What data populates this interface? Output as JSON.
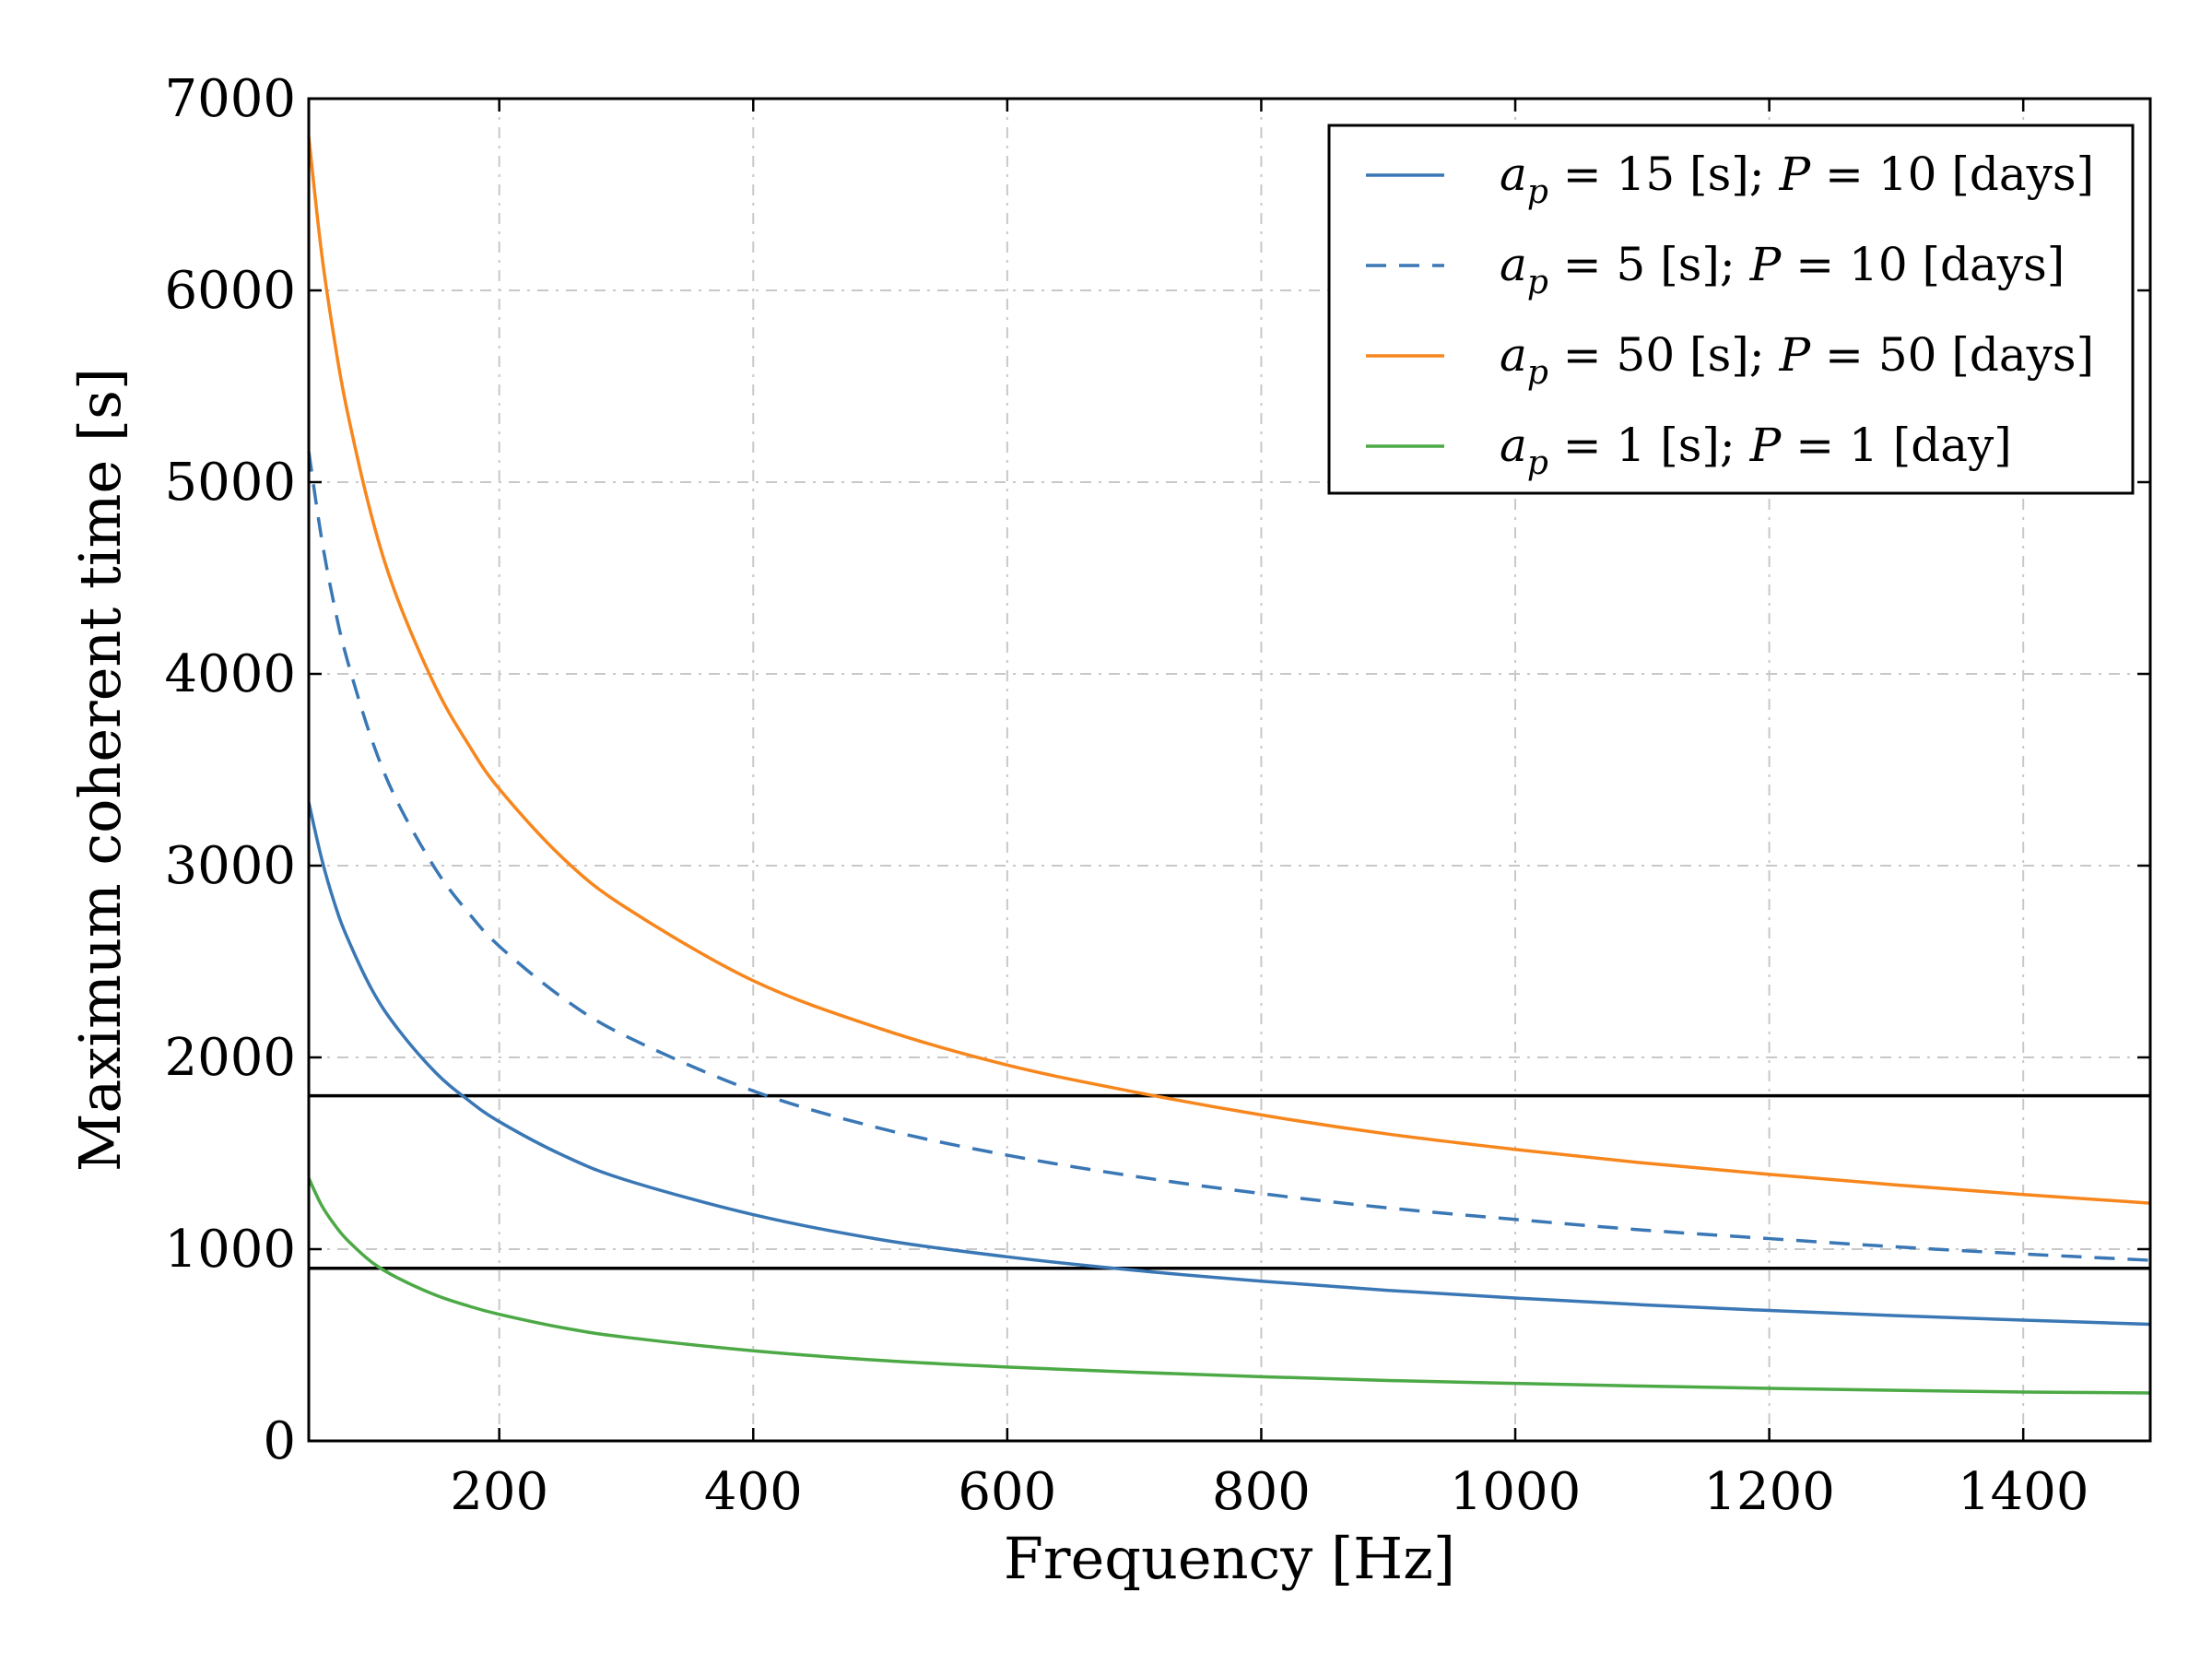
{
  "chart_data": {
    "type": "line",
    "title": "",
    "xlabel": "Frequency [Hz]",
    "ylabel": "Maximum coherent time [s]",
    "xlim": [
      50,
      1500
    ],
    "ylim": [
      0,
      7000
    ],
    "xticks": [
      200,
      400,
      600,
      800,
      1000,
      1200,
      1400
    ],
    "xtick_labels": [
      "200",
      "400",
      "600",
      "800",
      "1000",
      "1200",
      "1400"
    ],
    "yticks": [
      0,
      1000,
      2000,
      3000,
      4000,
      5000,
      6000,
      7000
    ],
    "ytick_labels": [
      "0",
      "1000",
      "2000",
      "3000",
      "4000",
      "5000",
      "6000",
      "7000"
    ],
    "grid": true,
    "legend_position": "top-right",
    "x": [
      50,
      60,
      70,
      80,
      100,
      120,
      150,
      175,
      200,
      250,
      300,
      400,
      500,
      600,
      700,
      800,
      900,
      1000,
      1100,
      1200,
      1300,
      1400,
      1500
    ],
    "series": [
      {
        "name": "a_p = 15 [s]; P = 10 [days]",
        "legend_parts": [
          "a",
          "p",
          " = 15 [s]; ",
          "P",
          " = 10 [days]"
        ],
        "color": "#3a77b5",
        "style": "solid",
        "values": [
          3330,
          3040,
          2810,
          2630,
          2350,
          2150,
          1920,
          1780,
          1665,
          1490,
          1360,
          1180,
          1050,
          960,
          890,
          833,
          785,
          745,
          710,
          680,
          653,
          630,
          608
        ]
      },
      {
        "name": "a_p = 5 [s]; P = 10 [days]",
        "legend_parts": [
          "a",
          "p",
          " = 5 [s]; ",
          "P",
          " = 10 [days]"
        ],
        "color": "#3a77b5",
        "style": "dashed",
        "values": [
          5160,
          4710,
          4360,
          4080,
          3650,
          3330,
          2980,
          2760,
          2580,
          2310,
          2110,
          1825,
          1630,
          1490,
          1380,
          1290,
          1215,
          1155,
          1100,
          1055,
          1012,
          975,
          942
        ]
      },
      {
        "name": "a_p = 50 [s]; P = 50 [days]",
        "legend_parts": [
          "a",
          "p",
          " = 50 [s]; ",
          "P",
          " = 50 [days]"
        ],
        "color": "#f7861d",
        "style": "solid",
        "values": [
          6800,
          6200,
          5750,
          5380,
          4810,
          4390,
          3930,
          3640,
          3400,
          3040,
          2780,
          2400,
          2150,
          1960,
          1820,
          1700,
          1600,
          1520,
          1450,
          1390,
          1335,
          1285,
          1240
        ]
      },
      {
        "name": "a_p = 1 [s]; P = 1 [day]",
        "legend_parts": [
          "a",
          "p",
          " = 1 [s]; ",
          "P",
          " = 1 [day]"
        ],
        "color": "#4ca946",
        "style": "solid",
        "values": [
          1370,
          1230,
          1130,
          1050,
          930,
          850,
          760,
          705,
          660,
          590,
          540,
          470,
          420,
          385,
          358,
          335,
          315,
          300,
          286,
          274,
          264,
          255,
          250
        ]
      }
    ],
    "reference_lines": [
      {
        "name": "threshold-1800",
        "y": 1800,
        "color": "#000000"
      },
      {
        "name": "threshold-900",
        "y": 900,
        "color": "#000000"
      }
    ]
  }
}
